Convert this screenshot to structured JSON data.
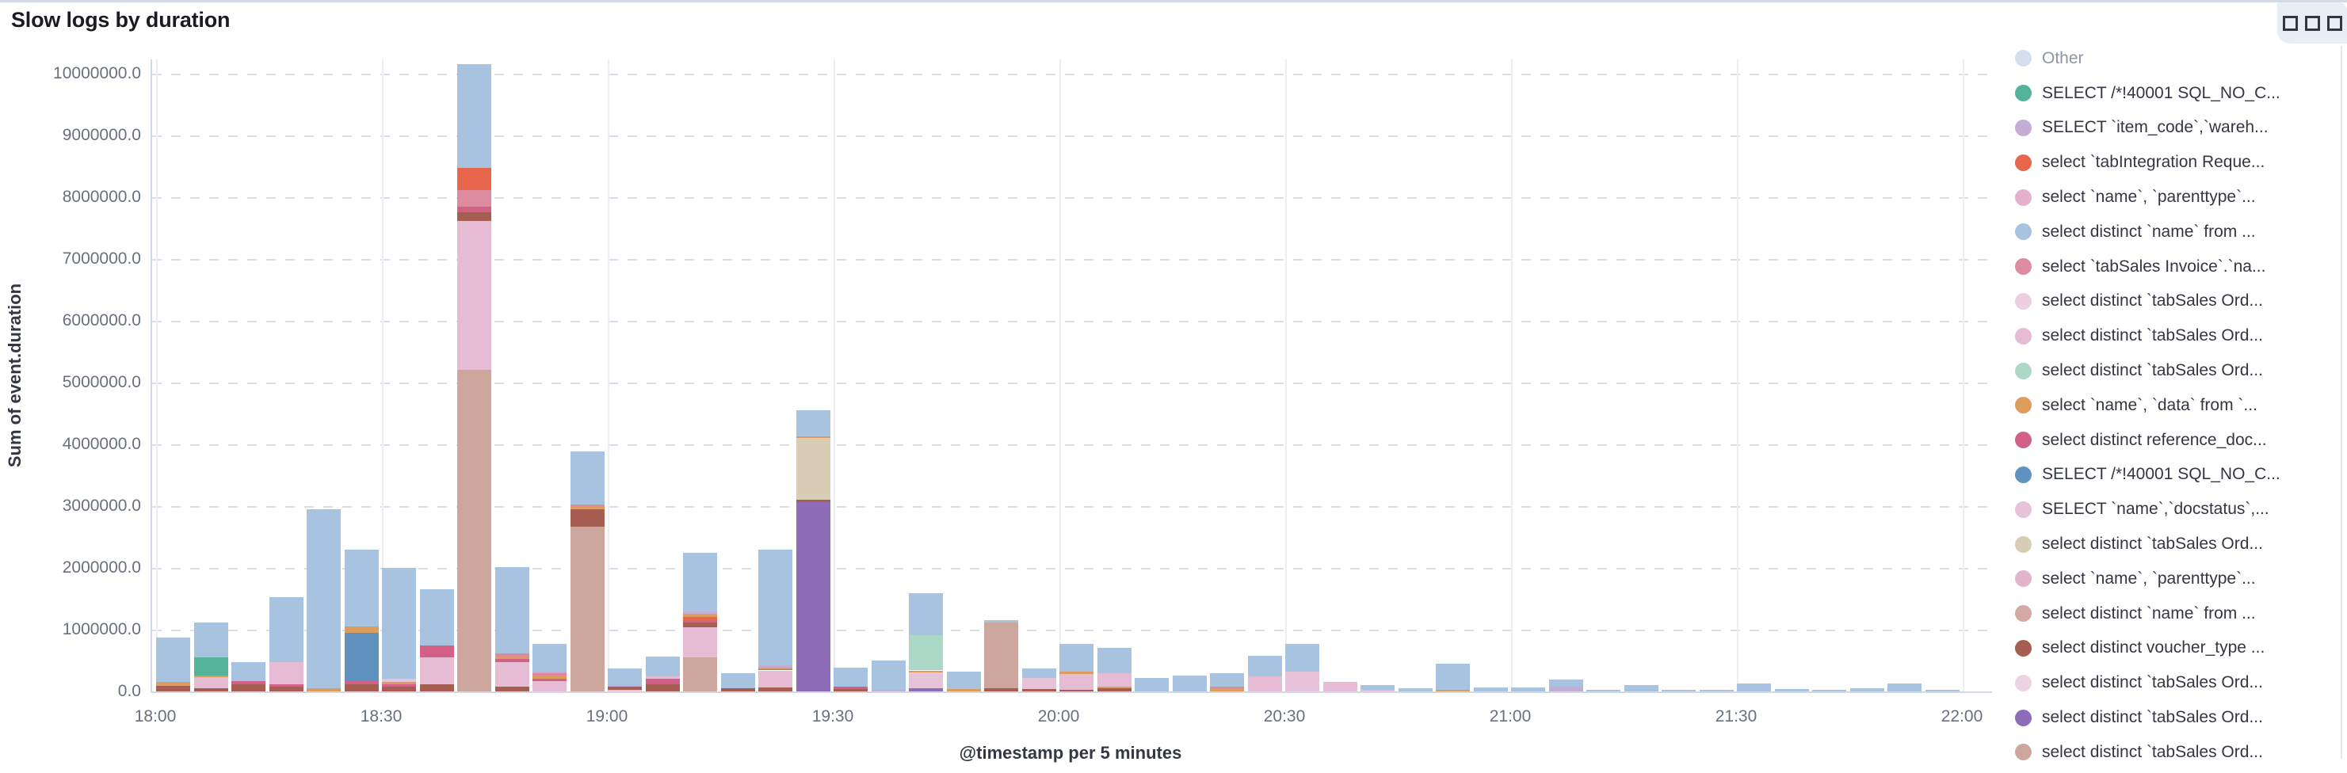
{
  "panel": {
    "title": "Slow logs by duration"
  },
  "chart_data": {
    "type": "bar",
    "stacked": true,
    "title": "Slow logs by duration",
    "xlabel": "@timestamp per 5 minutes",
    "ylabel": "Sum of event.duration",
    "ylim": [
      0,
      10230000
    ],
    "grid": true,
    "legend_position": "right",
    "y_ticks": [
      "10000000.0",
      "9000000.0",
      "8000000.0",
      "7000000.0",
      "6000000.0",
      "5000000.0",
      "4000000.0",
      "3000000.0",
      "2000000.0",
      "1000000.0",
      "0.0"
    ],
    "x_ticks": [
      "18:00",
      "18:30",
      "19:00",
      "19:30",
      "20:00",
      "20:30",
      "21:00",
      "21:30",
      "22:00"
    ],
    "series": [
      {
        "label": "Other",
        "color": "#d3dfee",
        "muted": true
      },
      {
        "label": "SELECT /*!40001 SQL_NO_C...",
        "color": "#54b399"
      },
      {
        "label": "SELECT `item_code`,`wareh...",
        "color": "#c5aed6"
      },
      {
        "label": "select `tabIntegration Reque...",
        "color": "#e7664c"
      },
      {
        "label": "select `name`, `parenttype`...",
        "color": "#e5b2cd"
      },
      {
        "label": "select distinct `name` from ...",
        "color": "#a8c3e0"
      },
      {
        "label": "select `tabSales Invoice`.`na...",
        "color": "#dd8b9e"
      },
      {
        "label": "select distinct `tabSales Ord...",
        "color": "#eccfe0"
      },
      {
        "label": "select distinct `tabSales Ord...",
        "color": "#e5bcd3"
      },
      {
        "label": "select distinct `tabSales Ord...",
        "color": "#abd8c7"
      },
      {
        "label": "select `name`, `data` from `...",
        "color": "#de9c5c"
      },
      {
        "label": "select distinct reference_doc...",
        "color": "#d36086"
      },
      {
        "label": "SELECT /*!40001 SQL_NO_C...",
        "color": "#6092c0"
      },
      {
        "label": "SELECT `name`,`docstatus`,...",
        "color": "#e6c3d8"
      },
      {
        "label": "select distinct `tabSales Ord...",
        "color": "#d6cdb4"
      },
      {
        "label": "select `name`, `parenttype`...",
        "color": "#e2b5cc"
      },
      {
        "label": "select distinct `name` from ...",
        "color": "#d2a9a4"
      },
      {
        "label": "select distinct voucher_type ...",
        "color": "#a65d52"
      },
      {
        "label": "select distinct `tabSales Ord...",
        "color": "#ecd3e0"
      },
      {
        "label": "select distinct `tabSales Ord...",
        "color": "#8d6cb8"
      },
      {
        "label": "select distinct `tabSales Ord...",
        "color": "#cda69e"
      }
    ],
    "bars": [
      {
        "t": "18:00",
        "segments": [
          [
            17,
            90000
          ],
          [
            10,
            60000
          ],
          [
            5,
            720000
          ]
        ]
      },
      {
        "t": "18:05",
        "segments": [
          [
            17,
            50000
          ],
          [
            8,
            180000
          ],
          [
            10,
            30000
          ],
          [
            1,
            290000
          ],
          [
            5,
            570000
          ]
        ]
      },
      {
        "t": "18:10",
        "segments": [
          [
            17,
            120000
          ],
          [
            11,
            50000
          ],
          [
            5,
            300000
          ]
        ]
      },
      {
        "t": "18:15",
        "segments": [
          [
            17,
            80000
          ],
          [
            11,
            40000
          ],
          [
            8,
            350000
          ],
          [
            5,
            1050000
          ]
        ]
      },
      {
        "t": "18:20",
        "segments": [
          [
            10,
            50000
          ],
          [
            5,
            2900000
          ]
        ]
      },
      {
        "t": "18:25",
        "segments": [
          [
            17,
            120000
          ],
          [
            11,
            50000
          ],
          [
            12,
            780000
          ],
          [
            10,
            100000
          ],
          [
            5,
            1250000
          ]
        ]
      },
      {
        "t": "18:30",
        "segments": [
          [
            17,
            80000
          ],
          [
            11,
            30000
          ],
          [
            10,
            40000
          ],
          [
            13,
            50000
          ],
          [
            5,
            1800000
          ]
        ]
      },
      {
        "t": "18:35",
        "segments": [
          [
            17,
            120000
          ],
          [
            8,
            430000
          ],
          [
            11,
            190000
          ],
          [
            5,
            920000
          ]
        ]
      },
      {
        "t": "18:40",
        "segments": [
          [
            20,
            5210000
          ],
          [
            8,
            2410000
          ],
          [
            17,
            140000
          ],
          [
            11,
            90000
          ],
          [
            6,
            260000
          ],
          [
            3,
            360000
          ],
          [
            5,
            1680000
          ]
        ]
      },
      {
        "t": "18:45",
        "segments": [
          [
            17,
            80000
          ],
          [
            8,
            400000
          ],
          [
            11,
            40000
          ],
          [
            10,
            50000
          ],
          [
            6,
            50000
          ],
          [
            5,
            1390000
          ]
        ]
      },
      {
        "t": "18:50",
        "segments": [
          [
            8,
            170000
          ],
          [
            11,
            30000
          ],
          [
            10,
            40000
          ],
          [
            6,
            50000
          ],
          [
            2,
            30000
          ],
          [
            5,
            450000
          ]
        ]
      },
      {
        "t": "18:55",
        "segments": [
          [
            20,
            2670000
          ],
          [
            17,
            280000
          ],
          [
            10,
            40000
          ],
          [
            6,
            40000
          ],
          [
            5,
            850000
          ]
        ]
      },
      {
        "t": "19:00",
        "segments": [
          [
            13,
            30000
          ],
          [
            17,
            50000
          ],
          [
            2,
            20000
          ],
          [
            5,
            270000
          ]
        ]
      },
      {
        "t": "19:05",
        "segments": [
          [
            17,
            120000
          ],
          [
            11,
            80000
          ],
          [
            8,
            50000
          ],
          [
            5,
            320000
          ]
        ]
      },
      {
        "t": "19:10",
        "segments": [
          [
            20,
            550000
          ],
          [
            8,
            490000
          ],
          [
            17,
            80000
          ],
          [
            11,
            40000
          ],
          [
            3,
            40000
          ],
          [
            10,
            60000
          ],
          [
            2,
            40000
          ],
          [
            5,
            940000
          ]
        ]
      },
      {
        "t": "19:15",
        "segments": [
          [
            17,
            50000
          ],
          [
            5,
            250000
          ]
        ]
      },
      {
        "t": "19:20",
        "segments": [
          [
            17,
            70000
          ],
          [
            8,
            270000
          ],
          [
            11,
            20000
          ],
          [
            10,
            30000
          ],
          [
            2,
            30000
          ],
          [
            5,
            1880000
          ]
        ]
      },
      {
        "t": "19:25",
        "segments": [
          [
            19,
            3060000
          ],
          [
            17,
            40000
          ],
          [
            14,
            1000000
          ],
          [
            10,
            30000
          ],
          [
            5,
            420000
          ]
        ]
      },
      {
        "t": "19:30",
        "segments": [
          [
            17,
            40000
          ],
          [
            11,
            40000
          ],
          [
            5,
            300000
          ]
        ]
      },
      {
        "t": "19:35",
        "segments": [
          [
            2,
            30000
          ],
          [
            5,
            470000
          ]
        ]
      },
      {
        "t": "19:40",
        "segments": [
          [
            19,
            50000
          ],
          [
            13,
            260000
          ],
          [
            10,
            30000
          ],
          [
            9,
            570000
          ],
          [
            5,
            680000
          ]
        ]
      },
      {
        "t": "19:45",
        "segments": [
          [
            10,
            40000
          ],
          [
            5,
            280000
          ]
        ]
      },
      {
        "t": "19:50",
        "segments": [
          [
            17,
            50000
          ],
          [
            20,
            1070000
          ],
          [
            5,
            30000
          ]
        ]
      },
      {
        "t": "19:55",
        "segments": [
          [
            17,
            40000
          ],
          [
            13,
            180000
          ],
          [
            5,
            150000
          ]
        ]
      },
      {
        "t": "20:00",
        "segments": [
          [
            17,
            30000
          ],
          [
            8,
            250000
          ],
          [
            10,
            40000
          ],
          [
            5,
            450000
          ]
        ]
      },
      {
        "t": "20:05",
        "segments": [
          [
            17,
            50000
          ],
          [
            10,
            30000
          ],
          [
            8,
            220000
          ],
          [
            5,
            400000
          ]
        ]
      },
      {
        "t": "20:10",
        "segments": [
          [
            5,
            220000
          ]
        ]
      },
      {
        "t": "20:15",
        "segments": [
          [
            5,
            260000
          ]
        ]
      },
      {
        "t": "20:20",
        "segments": [
          [
            10,
            40000
          ],
          [
            6,
            40000
          ],
          [
            5,
            220000
          ]
        ]
      },
      {
        "t": "20:25",
        "segments": [
          [
            8,
            250000
          ],
          [
            5,
            330000
          ]
        ]
      },
      {
        "t": "20:30",
        "segments": [
          [
            13,
            320000
          ],
          [
            5,
            450000
          ]
        ]
      },
      {
        "t": "20:35",
        "segments": [
          [
            8,
            150000
          ]
        ]
      },
      {
        "t": "20:40",
        "segments": [
          [
            8,
            30000
          ],
          [
            5,
            70000
          ]
        ]
      },
      {
        "t": "20:45",
        "segments": [
          [
            5,
            50000
          ]
        ]
      },
      {
        "t": "20:50",
        "segments": [
          [
            10,
            30000
          ],
          [
            5,
            420000
          ]
        ]
      },
      {
        "t": "20:55",
        "segments": [
          [
            5,
            60000
          ]
        ]
      },
      {
        "t": "21:00",
        "segments": [
          [
            5,
            60000
          ]
        ]
      },
      {
        "t": "21:05",
        "segments": [
          [
            2,
            80000
          ],
          [
            5,
            110000
          ]
        ]
      },
      {
        "t": "21:10",
        "segments": [
          [
            5,
            20000
          ]
        ]
      },
      {
        "t": "21:15",
        "segments": [
          [
            5,
            100000
          ]
        ]
      },
      {
        "t": "21:20",
        "segments": [
          [
            5,
            30000
          ]
        ]
      },
      {
        "t": "21:25",
        "segments": [
          [
            5,
            20000
          ]
        ]
      },
      {
        "t": "21:30",
        "segments": [
          [
            5,
            130000
          ]
        ]
      },
      {
        "t": "21:35",
        "segments": [
          [
            5,
            40000
          ]
        ]
      },
      {
        "t": "21:40",
        "segments": [
          [
            5,
            20000
          ]
        ]
      },
      {
        "t": "21:45",
        "segments": [
          [
            5,
            50000
          ]
        ]
      },
      {
        "t": "21:50",
        "segments": [
          [
            5,
            130000
          ]
        ]
      },
      {
        "t": "21:55",
        "segments": [
          [
            5,
            20000
          ]
        ]
      }
    ]
  }
}
